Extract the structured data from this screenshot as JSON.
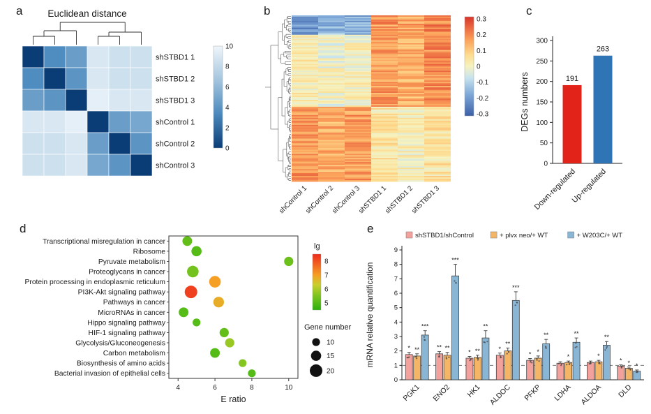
{
  "panel_labels": {
    "a": "a",
    "b": "b",
    "c": "c",
    "d": "d",
    "e": "e"
  },
  "chart_data": [
    {
      "id": "a",
      "type": "heatmap",
      "title": "Euclidean distance",
      "rows": [
        "shSTBD1 1",
        "shSTBD1 2",
        "shSTBD1 3",
        "shControl 1",
        "shControl 2",
        "shControl 3"
      ],
      "cols": [
        "shSTBD1 1",
        "shSTBD1 2",
        "shSTBD1 3",
        "shControl 1",
        "shControl 2",
        "shControl 3"
      ],
      "values": [
        [
          0,
          3.5,
          4.5,
          9,
          8.5,
          8.5
        ],
        [
          3.5,
          0,
          4,
          9,
          8.5,
          8.5
        ],
        [
          4.5,
          4,
          0,
          9.5,
          9,
          9
        ],
        [
          9,
          9,
          9.5,
          0,
          4.5,
          5
        ],
        [
          8.5,
          8.5,
          9,
          4.5,
          0,
          4
        ],
        [
          8.5,
          8.5,
          9,
          5,
          4,
          0
        ]
      ],
      "scale_min": 0,
      "scale_max": 10,
      "colorbar_ticks": [
        10,
        8,
        6,
        4,
        2,
        0
      ],
      "color_stops": [
        [
          0,
          "#0a3d76"
        ],
        [
          3.5,
          "#4f8cbf"
        ],
        [
          6.5,
          "#9fc2dc"
        ],
        [
          10,
          "#f0f6fb"
        ]
      ]
    },
    {
      "id": "b",
      "type": "heatmap",
      "cols": [
        "shControl 1",
        "shControl 2",
        "shControl 3",
        "shSTBD1 1",
        "shSTBD1 2",
        "shSTBD1 3"
      ],
      "scale_min": -0.35,
      "scale_max": 0.35,
      "colorbar_ticks": [
        0.3,
        0.2,
        0.1,
        0,
        -0.1,
        -0.2,
        -0.3
      ],
      "row_groups": [
        {
          "rows": 14,
          "means": [
            -0.24,
            -0.16,
            -0.2,
            0.2,
            0.17,
            0.23
          ],
          "noise": 0.08
        },
        {
          "rows": 52,
          "means": [
            0.03,
            -0.01,
            0.01,
            0.19,
            0.15,
            0.21
          ],
          "noise": 0.07
        },
        {
          "rows": 54,
          "means": [
            0.2,
            0.16,
            0.19,
            0.04,
            0.01,
            0.05
          ],
          "noise": 0.07
        }
      ],
      "color_stops": [
        [
          -0.35,
          "#3c5fa7"
        ],
        [
          -0.2,
          "#7ea8d8"
        ],
        [
          -0.08,
          "#c8e4ee"
        ],
        [
          0,
          "#f6f2bf"
        ],
        [
          0.08,
          "#fddc90"
        ],
        [
          0.18,
          "#fca55d"
        ],
        [
          0.27,
          "#ec6a41"
        ],
        [
          0.35,
          "#d7342a"
        ]
      ]
    },
    {
      "id": "c",
      "type": "bar",
      "ylabel": "DEGs numbers",
      "ylim": [
        0,
        300
      ],
      "yticks": [
        0,
        50,
        100,
        150,
        200,
        250,
        300
      ],
      "categories": [
        "Down-regulated",
        "Up-regulated"
      ],
      "values": [
        191,
        263
      ],
      "bar_colors": [
        "#e2231a",
        "#2f75b5"
      ]
    },
    {
      "id": "d",
      "type": "scatter",
      "xlabel": "E ratio",
      "xlim": [
        3.5,
        10.5
      ],
      "xticks": [
        4,
        6,
        8,
        10
      ],
      "color_legend": {
        "title": "lg",
        "ticks": [
          8,
          7,
          6,
          5
        ],
        "min": 4.5,
        "max": 8.5
      },
      "size_legend": {
        "title": "Gene number",
        "sizes": [
          10,
          15,
          20
        ]
      },
      "color_stops": [
        [
          4.5,
          "#2db10e"
        ],
        [
          5.5,
          "#7cc41f"
        ],
        [
          6.3,
          "#c8cf2e"
        ],
        [
          7,
          "#f59f25"
        ],
        [
          8.5,
          "#ee2a1d"
        ]
      ],
      "points": [
        {
          "label": "Transcriptional misregulation in cancer",
          "x": 4.5,
          "lg": 5.2,
          "n": 14
        },
        {
          "label": "Ribosome",
          "x": 5.0,
          "lg": 5.0,
          "n": 15
        },
        {
          "label": "Pyruvate metabolism",
          "x": 10.0,
          "lg": 5.3,
          "n": 13
        },
        {
          "label": "Proteoglycans in cancer",
          "x": 4.8,
          "lg": 5.4,
          "n": 18
        },
        {
          "label": "Protein processing in endoplasmic reticulum",
          "x": 6.0,
          "lg": 7.0,
          "n": 18
        },
        {
          "label": "PI3K-Akt signaling pathway",
          "x": 4.7,
          "lg": 8.2,
          "n": 20
        },
        {
          "label": "Pathways in cancer",
          "x": 6.2,
          "lg": 6.8,
          "n": 16
        },
        {
          "label": "MicroRNAs in cancer",
          "x": 4.3,
          "lg": 5.0,
          "n": 14
        },
        {
          "label": "Hippo signaling pathway",
          "x": 5.0,
          "lg": 5.0,
          "n": 10
        },
        {
          "label": "HIF-1 signaling pathway",
          "x": 6.5,
          "lg": 5.2,
          "n": 13
        },
        {
          "label": "Glycolysis/Gluconeogenesis",
          "x": 6.8,
          "lg": 5.8,
          "n": 13
        },
        {
          "label": "Carbon metabolism",
          "x": 6.0,
          "lg": 5.0,
          "n": 14
        },
        {
          "label": "Biosynthesis of amino acids",
          "x": 7.5,
          "lg": 5.6,
          "n": 10
        },
        {
          "label": "Bacterial invasion of epithelial cells",
          "x": 8.0,
          "lg": 5.0,
          "n": 10
        }
      ]
    },
    {
      "id": "e",
      "type": "bar",
      "ylabel": "mRNA relative quantification",
      "ylim": [
        0,
        9
      ],
      "yticks": [
        0,
        1,
        2,
        3,
        4,
        5,
        6,
        7,
        8,
        9
      ],
      "reference_line": 1,
      "series": [
        {
          "name": "shSTBD1/shControl",
          "color": "#f2a19c"
        },
        {
          "name": "+ plvx neo/+ WT",
          "color": "#f5b567"
        },
        {
          "name": "+ W203C/+ WT",
          "color": "#8ab6d6"
        }
      ],
      "categories": [
        "PGK1",
        "ENO2",
        "HK1",
        "ALDOC",
        "PFKP",
        "LDHA",
        "ALDOA",
        "DLD"
      ],
      "values": [
        [
          1.75,
          1.65,
          3.1
        ],
        [
          1.8,
          1.7,
          7.2
        ],
        [
          1.5,
          1.55,
          2.9
        ],
        [
          1.7,
          2.0,
          5.5
        ],
        [
          1.35,
          1.5,
          2.5
        ],
        [
          1.15,
          1.2,
          2.6
        ],
        [
          1.2,
          1.25,
          2.4
        ],
        [
          0.95,
          0.8,
          0.6
        ]
      ],
      "errors": [
        [
          0.15,
          0.15,
          0.3
        ],
        [
          0.15,
          0.2,
          0.8
        ],
        [
          0.12,
          0.15,
          0.5
        ],
        [
          0.15,
          0.2,
          0.6
        ],
        [
          0.12,
          0.15,
          0.3
        ],
        [
          0.1,
          0.1,
          0.3
        ],
        [
          0.1,
          0.1,
          0.25
        ],
        [
          0.08,
          0.08,
          0.08
        ]
      ],
      "stars": [
        [
          "*",
          "**",
          "***"
        ],
        [
          "**",
          "**",
          "***"
        ],
        [
          "*",
          "**",
          "**"
        ],
        [
          "*",
          "**",
          "***"
        ],
        [
          "*",
          "*",
          "**"
        ],
        [
          "",
          "*",
          "**"
        ],
        [
          "",
          "*",
          "**"
        ],
        [
          "*",
          "*",
          "*"
        ]
      ]
    }
  ]
}
